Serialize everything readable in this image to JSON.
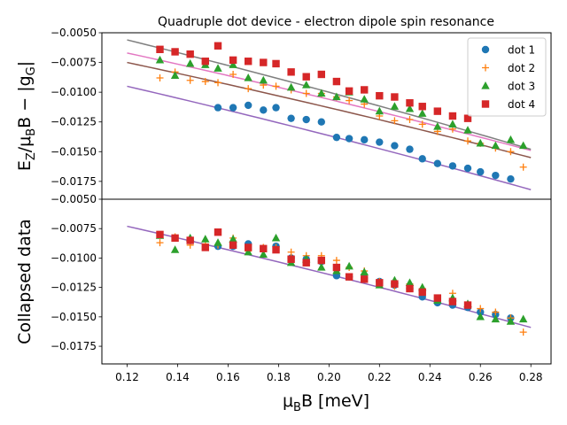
{
  "chart_data": {
    "type": "scatter",
    "title": "Quadruple dot device - electron dipole spin resonance",
    "xlabel": "μ_B B [meV]",
    "xlabel_text": "μBB [meV]",
    "xlim": [
      0.11,
      0.288
    ],
    "x_ticks": [
      "0.12",
      "0.14",
      "0.16",
      "0.18",
      "0.20",
      "0.22",
      "0.24",
      "0.26",
      "0.28"
    ],
    "x_tick_values": [
      0.12,
      0.14,
      0.16,
      0.18,
      0.2,
      0.22,
      0.24,
      0.26,
      0.28
    ],
    "colors": {
      "dot1": "#1f77b4",
      "dot2": "#ff7f0e",
      "dot3": "#2ca02c",
      "dot4": "#d62728",
      "fit1": "#9467bd",
      "fit2": "#8c564b",
      "fit3": "#e377c2",
      "fit4": "#7f7f7f"
    },
    "legend": {
      "placement": "top-right",
      "entries": [
        "dot 1",
        "dot 2",
        "dot 3",
        "dot 4"
      ]
    },
    "panels": [
      {
        "name": "top",
        "ylabel": "E_Z/μ_B B − |g_G|",
        "ylabel_text": "EZ/μBB − |gG|",
        "ylim": [
          -0.019,
          -0.005
        ],
        "y_ticks": [
          "−0.0050",
          "−0.0075",
          "−0.0100",
          "−0.0125",
          "−0.0150",
          "−0.0175"
        ],
        "y_tick_values": [
          -0.005,
          -0.0075,
          -0.01,
          -0.0125,
          -0.015,
          -0.0175
        ],
        "series": [
          {
            "name": "dot 1",
            "marker": "circle",
            "x": [
              0.156,
              0.162,
              0.168,
              0.174,
              0.179,
              0.185,
              0.191,
              0.197,
              0.203,
              0.208,
              0.214,
              0.22,
              0.226,
              0.232,
              0.237,
              0.243,
              0.249,
              0.255,
              0.26,
              0.266,
              0.272
            ],
            "y": [
              -0.0113,
              -0.0113,
              -0.0111,
              -0.0115,
              -0.0113,
              -0.0122,
              -0.0123,
              -0.0125,
              -0.0138,
              -0.0139,
              -0.014,
              -0.0142,
              -0.0145,
              -0.0148,
              -0.0156,
              -0.016,
              -0.0162,
              -0.0164,
              -0.0167,
              -0.017,
              -0.0173
            ]
          },
          {
            "name": "dot 2",
            "marker": "plus",
            "x": [
              0.133,
              0.139,
              0.145,
              0.151,
              0.156,
              0.162,
              0.168,
              0.174,
              0.179,
              0.185,
              0.191,
              0.197,
              0.203,
              0.208,
              0.214,
              0.22,
              0.226,
              0.232,
              0.237,
              0.243,
              0.249,
              0.255,
              0.26,
              0.266,
              0.272,
              0.277
            ],
            "y": [
              -0.0088,
              -0.0083,
              -0.009,
              -0.0091,
              -0.0092,
              -0.0085,
              -0.0097,
              -0.0094,
              -0.0095,
              -0.0098,
              -0.0101,
              -0.0101,
              -0.0104,
              -0.0107,
              -0.011,
              -0.012,
              -0.0124,
              -0.0123,
              -0.0127,
              -0.0133,
              -0.0131,
              -0.0141,
              -0.0143,
              -0.0147,
              -0.015,
              -0.0163
            ]
          },
          {
            "name": "dot 3",
            "marker": "triangle",
            "x": [
              0.133,
              0.139,
              0.145,
              0.151,
              0.156,
              0.162,
              0.168,
              0.174,
              0.185,
              0.191,
              0.197,
              0.203,
              0.208,
              0.214,
              0.22,
              0.226,
              0.232,
              0.237,
              0.243,
              0.249,
              0.255,
              0.26,
              0.266,
              0.272,
              0.277
            ],
            "y": [
              -0.0073,
              -0.0086,
              -0.0076,
              -0.0077,
              -0.008,
              -0.0077,
              -0.0088,
              -0.009,
              -0.0096,
              -0.0094,
              -0.0101,
              -0.0104,
              -0.01,
              -0.0106,
              -0.0116,
              -0.0112,
              -0.0114,
              -0.0118,
              -0.0129,
              -0.0127,
              -0.0132,
              -0.0143,
              -0.0145,
              -0.014,
              -0.0145
            ]
          },
          {
            "name": "dot 4",
            "marker": "square",
            "x": [
              0.133,
              0.139,
              0.145,
              0.151,
              0.156,
              0.162,
              0.168,
              0.174,
              0.179,
              0.185,
              0.191,
              0.197,
              0.203,
              0.208,
              0.214,
              0.22,
              0.226,
              0.232,
              0.237,
              0.243,
              0.249,
              0.255
            ],
            "y": [
              -0.0064,
              -0.0066,
              -0.0068,
              -0.0074,
              -0.0061,
              -0.0073,
              -0.0074,
              -0.0075,
              -0.0076,
              -0.0083,
              -0.0087,
              -0.0085,
              -0.0091,
              -0.0099,
              -0.0098,
              -0.0103,
              -0.0104,
              -0.0109,
              -0.0112,
              -0.0116,
              -0.012,
              -0.0122
            ]
          }
        ],
        "fits": [
          {
            "name": "fit dot 1",
            "color_key": "fit1",
            "x": [
              0.12,
              0.28
            ],
            "y": [
              -0.0095,
              -0.0182
            ],
            "curvature": -0.0008
          },
          {
            "name": "fit dot 2",
            "color_key": "fit2",
            "x": [
              0.12,
              0.28
            ],
            "y": [
              -0.0075,
              -0.0155
            ],
            "curvature": -0.0008
          },
          {
            "name": "fit dot 3",
            "color_key": "fit3",
            "x": [
              0.12,
              0.28
            ],
            "y": [
              -0.0067,
              -0.0149
            ],
            "curvature": -0.0008
          },
          {
            "name": "fit dot 4",
            "color_key": "fit4",
            "x": [
              0.12,
              0.28
            ],
            "y": [
              -0.0056,
              -0.0148
            ],
            "curvature": -0.0008
          }
        ]
      },
      {
        "name": "bottom",
        "ylabel": "Collapsed data",
        "ylim": [
          -0.019,
          -0.005
        ],
        "y_ticks": [
          "−0.0050",
          "−0.0075",
          "−0.0100",
          "−0.0125",
          "−0.0150",
          "−0.0175"
        ],
        "y_tick_values": [
          -0.005,
          -0.0075,
          -0.01,
          -0.0125,
          -0.015,
          -0.0175
        ],
        "series": [
          {
            "name": "dot 1",
            "marker": "circle",
            "x": [
              0.156,
              0.162,
              0.168,
              0.174,
              0.179,
              0.185,
              0.191,
              0.197,
              0.203,
              0.208,
              0.214,
              0.22,
              0.226,
              0.232,
              0.237,
              0.243,
              0.249,
              0.255,
              0.26,
              0.266,
              0.272
            ],
            "y": [
              -0.009,
              -0.009,
              -0.0088,
              -0.0092,
              -0.009,
              -0.01,
              -0.0101,
              -0.0103,
              -0.0115,
              -0.0116,
              -0.0117,
              -0.012,
              -0.0123,
              -0.0126,
              -0.0133,
              -0.0138,
              -0.014,
              -0.0142,
              -0.0146,
              -0.0148,
              -0.0151
            ]
          },
          {
            "name": "dot 2",
            "marker": "plus",
            "x": [
              0.133,
              0.139,
              0.145,
              0.151,
              0.156,
              0.162,
              0.168,
              0.174,
              0.179,
              0.185,
              0.191,
              0.197,
              0.203,
              0.208,
              0.214,
              0.22,
              0.226,
              0.232,
              0.237,
              0.243,
              0.249,
              0.255,
              0.26,
              0.266,
              0.272,
              0.277
            ],
            "y": [
              -0.0087,
              -0.0082,
              -0.0089,
              -0.0088,
              -0.0089,
              -0.0083,
              -0.0094,
              -0.0091,
              -0.0091,
              -0.0095,
              -0.0098,
              -0.0098,
              -0.0102,
              -0.0108,
              -0.0111,
              -0.012,
              -0.0124,
              -0.0122,
              -0.0126,
              -0.0134,
              -0.013,
              -0.014,
              -0.0143,
              -0.0146,
              -0.0151,
              -0.0163
            ]
          },
          {
            "name": "dot 3",
            "marker": "triangle",
            "x": [
              0.133,
              0.139,
              0.145,
              0.151,
              0.156,
              0.162,
              0.168,
              0.174,
              0.179,
              0.185,
              0.191,
              0.197,
              0.203,
              0.208,
              0.214,
              0.22,
              0.226,
              0.232,
              0.237,
              0.243,
              0.249,
              0.255,
              0.26,
              0.266,
              0.272,
              0.277
            ],
            "y": [
              -0.0081,
              -0.0093,
              -0.0083,
              -0.0084,
              -0.0087,
              -0.0084,
              -0.0095,
              -0.0097,
              -0.0083,
              -0.0104,
              -0.0101,
              -0.0108,
              -0.0111,
              -0.0107,
              -0.0112,
              -0.0123,
              -0.0119,
              -0.0121,
              -0.0125,
              -0.0136,
              -0.0134,
              -0.0139,
              -0.015,
              -0.0152,
              -0.0154,
              -0.0152
            ]
          },
          {
            "name": "dot 4",
            "marker": "square",
            "x": [
              0.133,
              0.139,
              0.145,
              0.151,
              0.156,
              0.162,
              0.168,
              0.174,
              0.179,
              0.185,
              0.191,
              0.197,
              0.203,
              0.208,
              0.214,
              0.22,
              0.226,
              0.232,
              0.237,
              0.243,
              0.249,
              0.255
            ],
            "y": [
              -0.008,
              -0.0083,
              -0.0085,
              -0.0091,
              -0.0078,
              -0.0089,
              -0.0091,
              -0.0092,
              -0.0093,
              -0.0101,
              -0.0104,
              -0.0102,
              -0.0108,
              -0.0116,
              -0.0118,
              -0.0121,
              -0.0122,
              -0.0126,
              -0.0129,
              -0.0134,
              -0.0137,
              -0.014
            ]
          }
        ],
        "fits": [
          {
            "name": "collapsed fit",
            "color_key": "fit1",
            "x": [
              0.12,
              0.28
            ],
            "y": [
              -0.0073,
              -0.0159
            ],
            "curvature": -0.0008
          }
        ]
      }
    ]
  }
}
